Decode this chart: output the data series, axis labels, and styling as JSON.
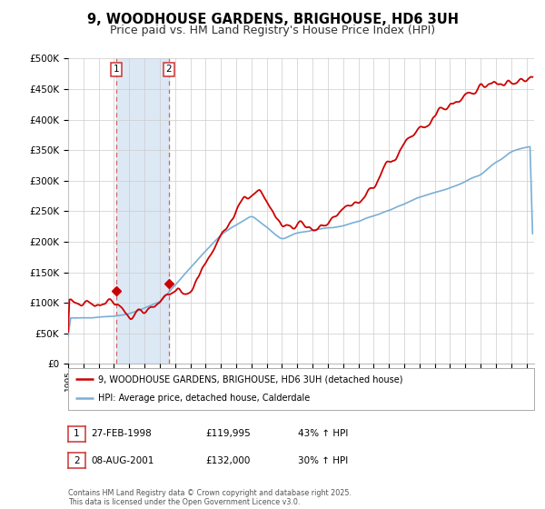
{
  "title": "9, WOODHOUSE GARDENS, BRIGHOUSE, HD6 3UH",
  "subtitle": "Price paid vs. HM Land Registry's House Price Index (HPI)",
  "ylabel_ticks": [
    "£0",
    "£50K",
    "£100K",
    "£150K",
    "£200K",
    "£250K",
    "£300K",
    "£350K",
    "£400K",
    "£450K",
    "£500K"
  ],
  "ytick_values": [
    0,
    50000,
    100000,
    150000,
    200000,
    250000,
    300000,
    350000,
    400000,
    450000,
    500000
  ],
  "xlim_start": 1995.0,
  "xlim_end": 2025.5,
  "ylim": [
    0,
    500000
  ],
  "sale1_x": 1998.15,
  "sale1_y": 119995,
  "sale2_x": 2001.6,
  "sale2_y": 132000,
  "red_color": "#cc0000",
  "blue_color": "#7aafd4",
  "shade_color": "#dde8f5",
  "dashed_line_color": "#cc4444",
  "background_color": "#ffffff",
  "grid_color": "#cccccc",
  "legend_line1": "9, WOODHOUSE GARDENS, BRIGHOUSE, HD6 3UH (detached house)",
  "legend_line2": "HPI: Average price, detached house, Calderdale",
  "table_row1": [
    "1",
    "27-FEB-1998",
    "£119,995",
    "43% ↑ HPI"
  ],
  "table_row2": [
    "2",
    "08-AUG-2001",
    "£132,000",
    "30% ↑ HPI"
  ],
  "footnote": "Contains HM Land Registry data © Crown copyright and database right 2025.\nThis data is licensed under the Open Government Licence v3.0.",
  "title_fontsize": 10.5,
  "subtitle_fontsize": 9
}
